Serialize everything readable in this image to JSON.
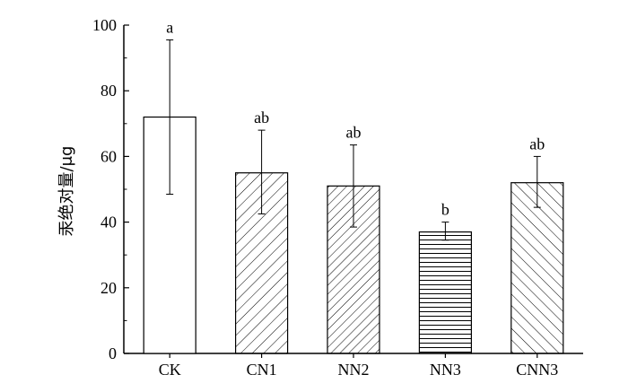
{
  "chart_data": {
    "type": "bar",
    "title": "",
    "xlabel": "",
    "ylabel": "汞绝对量/μg",
    "ylim": [
      0,
      100
    ],
    "yticks": [
      0,
      20,
      40,
      60,
      80,
      100
    ],
    "categories": [
      "CK",
      "CN1",
      "NN2",
      "NN3",
      "CNN3"
    ],
    "values": [
      72,
      55,
      51,
      37,
      52
    ],
    "error_low": [
      48.5,
      42.5,
      38.5,
      34.5,
      44.5
    ],
    "error_high": [
      95.5,
      68,
      63.5,
      40,
      60
    ],
    "significance": [
      "a",
      "ab",
      "ab",
      "b",
      "ab"
    ],
    "fills": [
      "empty",
      "diagonal-up",
      "diagonal-up-dense",
      "horizontal",
      "diagonal-down"
    ],
    "bar_color": "#000000",
    "grid": false
  }
}
